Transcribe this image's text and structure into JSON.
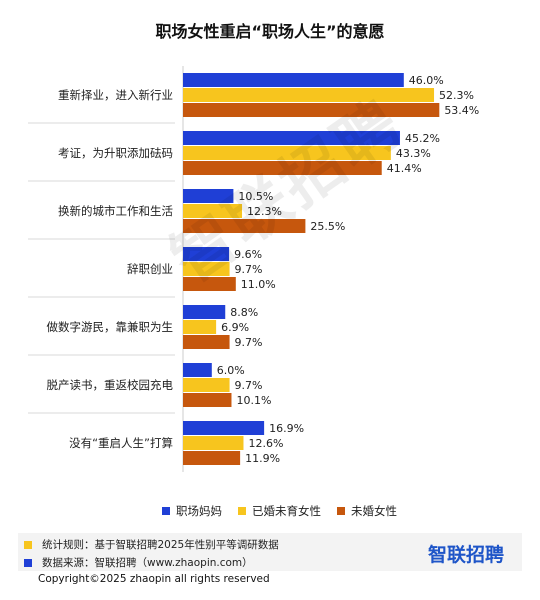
{
  "title": "职场女性重启“职场人生”的意愿",
  "watermark": "智联招聘",
  "chart_data": {
    "type": "bar",
    "orientation": "horizontal",
    "categories": [
      "重新择业，进入新行业",
      "考证，为升职添加砝码",
      "换新的城市工作和生活",
      "辞职创业",
      "做数字游民，靠兼职为生",
      "脱产读书，重返校园充电",
      "没有“重启人生”打算"
    ],
    "series": [
      {
        "name": "职场妈妈",
        "color": "#1f3fd6",
        "values": [
          46.0,
          45.2,
          10.5,
          9.6,
          8.8,
          6.0,
          16.9
        ],
        "labels": [
          "46.0%",
          "45.2%",
          "10.5%",
          "9.6%",
          "8.8%",
          "6.0%",
          "16.9%"
        ]
      },
      {
        "name": "已婚未育女性",
        "color": "#f7c51e",
        "values": [
          52.3,
          43.3,
          12.3,
          9.7,
          6.9,
          9.7,
          12.6
        ],
        "labels": [
          "52.3%",
          "43.3%",
          "12.3%",
          "9.7%",
          "6.9%",
          "9.7%",
          "12.6%"
        ]
      },
      {
        "name": "未婚女性",
        "color": "#c6570d",
        "values": [
          53.4,
          41.4,
          25.5,
          11.0,
          9.7,
          10.1,
          11.9
        ],
        "labels": [
          "53.4%",
          "41.4%",
          "25.5%",
          "11.0%",
          "9.7%",
          "10.1%",
          "11.9%"
        ]
      }
    ],
    "unit": "%",
    "xlim": [
      0,
      60
    ],
    "grid": false,
    "legend_position": "bottom"
  },
  "footer": {
    "notes": [
      {
        "text": "统计规则：基于智联招聘2025年性别平等调研数据",
        "color": "#f7c51e"
      },
      {
        "text": "数据来源：智联招聘（www.zhaopin.com）",
        "color": "#1f3fd6"
      }
    ],
    "logo": "智联招聘",
    "copyright": "Copyright©2025 zhaopin all rights reserved"
  }
}
